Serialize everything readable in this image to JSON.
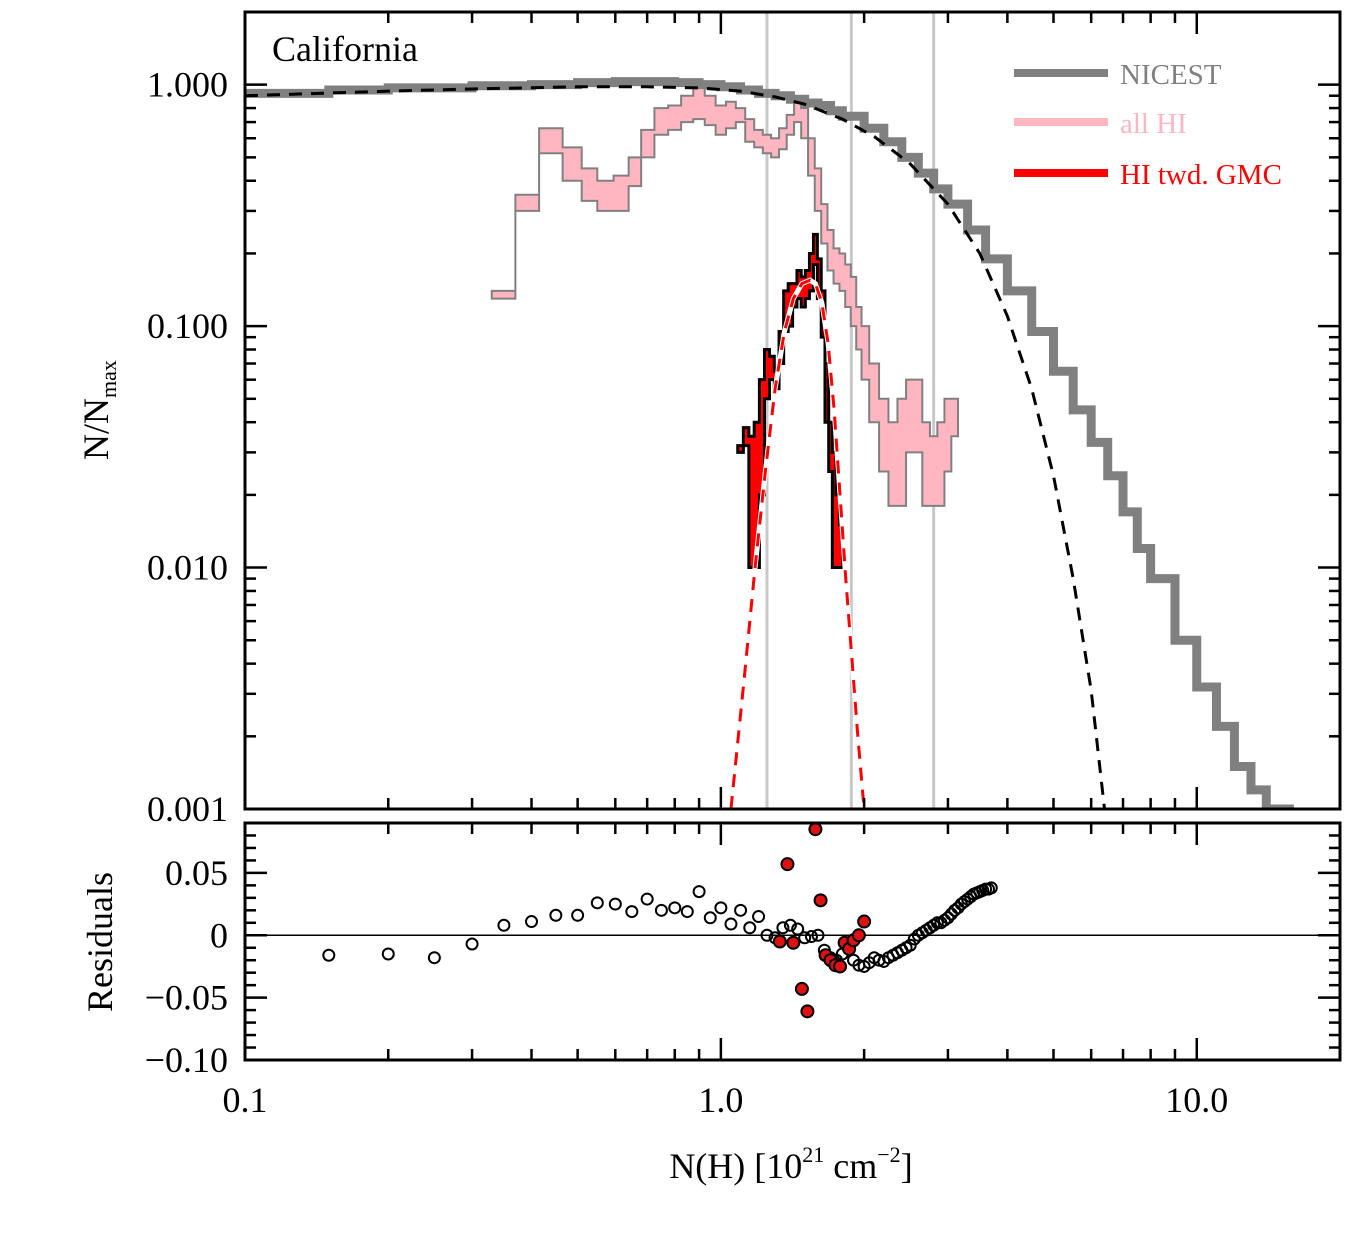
{
  "chart_data": [
    {
      "type": "line",
      "panel": "main",
      "title": "California",
      "ylabel_main": "N/N",
      "ylabel_sub": "max",
      "x_scale": "log",
      "y_scale": "log",
      "xlim": [
        0.1,
        20
      ],
      "ylim": [
        0.001,
        2.0
      ],
      "y_tick_labels": [
        {
          "value": 0.001,
          "label": "0.001"
        },
        {
          "value": 0.01,
          "label": "0.010"
        },
        {
          "value": 0.1,
          "label": "0.100"
        },
        {
          "value": 1.0,
          "label": "1.000"
        }
      ],
      "vertical_lines": [
        1.25,
        1.88,
        2.8
      ],
      "legend": [
        {
          "label": "NICEST",
          "color": "#808080"
        },
        {
          "label": "all HI",
          "color": "#ffb6c1"
        },
        {
          "label": "HI twd. GMC",
          "color": "#ff0000"
        }
      ],
      "series": {
        "nicest": {
          "color": "#808080",
          "x": [
            0.1,
            0.15,
            0.2,
            0.3,
            0.4,
            0.5,
            0.6,
            0.7,
            0.8,
            0.9,
            1.0,
            1.1,
            1.2,
            1.3,
            1.4,
            1.5,
            1.6,
            1.7,
            1.8,
            2.0,
            2.2,
            2.4,
            2.6,
            2.8,
            3.0,
            3.3,
            3.6,
            4.0,
            4.5,
            5.0,
            5.5,
            6.0,
            6.5,
            7.0,
            7.5,
            8.0,
            9.0,
            10.0,
            11.0,
            12.0,
            13.0,
            14.0,
            15.0,
            16.0
          ],
          "y": [
            0.92,
            0.95,
            0.97,
            0.99,
            1.0,
            1.02,
            1.03,
            1.03,
            1.02,
            1.0,
            0.98,
            0.95,
            0.92,
            0.9,
            0.87,
            0.84,
            0.82,
            0.78,
            0.74,
            0.66,
            0.58,
            0.5,
            0.43,
            0.37,
            0.32,
            0.25,
            0.19,
            0.14,
            0.095,
            0.065,
            0.045,
            0.033,
            0.024,
            0.017,
            0.012,
            0.009,
            0.005,
            0.0032,
            0.0022,
            0.0015,
            0.0012,
            0.001,
            0.001,
            0.001
          ]
        },
        "nicest_fit": {
          "color": "#000000",
          "x": [
            0.1,
            0.2,
            0.3,
            0.5,
            0.7,
            0.9,
            1.1,
            1.3,
            1.5,
            1.8,
            2.1,
            2.5,
            3.0,
            3.5,
            4.0,
            4.5,
            5.0,
            5.5,
            6.0,
            6.4
          ],
          "y": [
            0.9,
            0.94,
            0.96,
            0.98,
            0.98,
            0.97,
            0.94,
            0.89,
            0.83,
            0.72,
            0.61,
            0.47,
            0.32,
            0.2,
            0.11,
            0.055,
            0.024,
            0.009,
            0.0031,
            0.001
          ]
        },
        "all_hi": {
          "color": "#ffb6c1",
          "edge_color": "#808080",
          "x": [
            0.35,
            0.39,
            0.44,
            0.49,
            0.53,
            0.57,
            0.62,
            0.66,
            0.7,
            0.75,
            0.8,
            0.85,
            0.9,
            0.95,
            1.0,
            1.05,
            1.1,
            1.15,
            1.2,
            1.25,
            1.3,
            1.35,
            1.4,
            1.45,
            1.5,
            1.55,
            1.6,
            1.65,
            1.7,
            1.75,
            1.8,
            1.85,
            1.9,
            1.95,
            2.0,
            2.1,
            2.2,
            2.3,
            2.4,
            2.5,
            2.6,
            2.7,
            2.8,
            2.9,
            3.0,
            3.1
          ],
          "y_low": [
            0.13,
            0.3,
            0.52,
            0.4,
            0.33,
            0.3,
            0.3,
            0.38,
            0.5,
            0.62,
            0.65,
            0.7,
            0.72,
            0.68,
            0.62,
            0.66,
            0.7,
            0.58,
            0.55,
            0.52,
            0.5,
            0.54,
            0.62,
            0.7,
            0.6,
            0.42,
            0.3,
            0.22,
            0.17,
            0.15,
            0.14,
            0.12,
            0.1,
            0.08,
            0.06,
            0.04,
            0.025,
            0.018,
            0.018,
            0.03,
            0.03,
            0.018,
            0.018,
            0.018,
            0.025,
            0.035
          ],
          "y_high": [
            0.14,
            0.35,
            0.66,
            0.55,
            0.45,
            0.4,
            0.42,
            0.5,
            0.65,
            0.8,
            0.82,
            0.9,
            1.0,
            0.9,
            0.82,
            0.85,
            0.8,
            0.72,
            0.65,
            0.62,
            0.6,
            0.66,
            0.75,
            0.85,
            0.8,
            0.6,
            0.45,
            0.32,
            0.25,
            0.21,
            0.2,
            0.18,
            0.16,
            0.12,
            0.1,
            0.07,
            0.05,
            0.04,
            0.05,
            0.06,
            0.06,
            0.04,
            0.035,
            0.04,
            0.05,
            0.05
          ]
        },
        "hi_gmc": {
          "color": "#ff0000",
          "edge_color": "#000000",
          "x": [
            1.1,
            1.13,
            1.16,
            1.19,
            1.22,
            1.25,
            1.28,
            1.31,
            1.34,
            1.37,
            1.4,
            1.43,
            1.46,
            1.49,
            1.52,
            1.55,
            1.58,
            1.61,
            1.64,
            1.67,
            1.7,
            1.73,
            1.76,
            1.79,
            1.82
          ],
          "y_low": [
            0.03,
            0.032,
            0.01,
            0.01,
            0.02,
            0.05,
            0.06,
            0.055,
            0.07,
            0.095,
            0.1,
            0.12,
            0.13,
            0.12,
            0.13,
            0.14,
            0.18,
            0.13,
            0.09,
            0.04,
            0.025,
            0.01,
            0.01,
            0.01,
            0.01
          ],
          "y_high": [
            0.032,
            0.038,
            0.035,
            0.04,
            0.06,
            0.08,
            0.075,
            0.065,
            0.095,
            0.14,
            0.15,
            0.15,
            0.17,
            0.16,
            0.17,
            0.2,
            0.24,
            0.19,
            0.14,
            0.07,
            0.04,
            0.03,
            0.02,
            0.015,
            0.01
          ]
        },
        "hi_gmc_fit": {
          "color": "#ff0000",
          "x": [
            1.05,
            1.12,
            1.18,
            1.24,
            1.3,
            1.36,
            1.42,
            1.48,
            1.54,
            1.58,
            1.63,
            1.68,
            1.73,
            1.78,
            1.83,
            1.88,
            1.94,
            2.0
          ],
          "y": [
            0.001,
            0.0035,
            0.01,
            0.025,
            0.055,
            0.095,
            0.13,
            0.15,
            0.155,
            0.15,
            0.125,
            0.085,
            0.045,
            0.02,
            0.009,
            0.0045,
            0.002,
            0.001
          ]
        }
      }
    },
    {
      "type": "scatter",
      "panel": "residuals",
      "ylabel": "Residuals",
      "xlabel_main": "N(H) [10",
      "xlabel_exp1": "21",
      "xlabel_mid": " cm",
      "xlabel_exp2": "−2",
      "xlabel_end": "]",
      "x_scale": "log",
      "xlim": [
        0.1,
        20
      ],
      "ylim": [
        -0.1,
        0.09
      ],
      "y_tick_labels": [
        {
          "value": -0.1,
          "label": "−0.10"
        },
        {
          "value": -0.05,
          "label": "−0.05"
        },
        {
          "value": 0,
          "label": "0"
        },
        {
          "value": 0.05,
          "label": "0.05"
        }
      ],
      "x_tick_labels": [
        {
          "value": 0.1,
          "label": "0.1"
        },
        {
          "value": 1.0,
          "label": "1.0"
        },
        {
          "value": 10.0,
          "label": "10.0"
        }
      ],
      "open_points": {
        "x": [
          0.15,
          0.2,
          0.25,
          0.3,
          0.35,
          0.4,
          0.45,
          0.5,
          0.55,
          0.6,
          0.65,
          0.7,
          0.75,
          0.8,
          0.85,
          0.9,
          0.95,
          1.0,
          1.05,
          1.1,
          1.15,
          1.2,
          1.25,
          1.3,
          1.35,
          1.4,
          1.45,
          1.5,
          1.55,
          1.6,
          1.65,
          1.7,
          1.75,
          1.8,
          1.85,
          1.9,
          1.95,
          2.0,
          2.05,
          2.1,
          2.15,
          2.2,
          2.25,
          2.3,
          2.35,
          2.4,
          2.45,
          2.5,
          2.55,
          2.6,
          2.65,
          2.7,
          2.75,
          2.8,
          2.85,
          2.9,
          2.95,
          3.0,
          3.05,
          3.1,
          3.15,
          3.2,
          3.25,
          3.3,
          3.35,
          3.4,
          3.45,
          3.5,
          3.55,
          3.6,
          3.65,
          3.7
        ],
        "y": [
          -0.016,
          -0.015,
          -0.018,
          -0.007,
          0.008,
          0.011,
          0.016,
          0.016,
          0.026,
          0.025,
          0.019,
          0.029,
          0.02,
          0.022,
          0.019,
          0.035,
          0.014,
          0.022,
          0.009,
          0.02,
          0.006,
          0.015,
          0.0,
          -0.002,
          0.006,
          0.008,
          0.005,
          -0.002,
          -0.001,
          0.0,
          -0.012,
          -0.018,
          -0.02,
          -0.015,
          -0.01,
          -0.02,
          -0.024,
          -0.025,
          -0.022,
          -0.018,
          -0.02,
          -0.021,
          -0.018,
          -0.016,
          -0.014,
          -0.012,
          -0.01,
          -0.008,
          -0.003,
          0.0,
          0.002,
          0.004,
          0.006,
          0.008,
          0.01,
          0.01,
          0.012,
          0.014,
          0.017,
          0.02,
          0.022,
          0.025,
          0.027,
          0.029,
          0.031,
          0.033,
          0.034,
          0.035,
          0.036,
          0.037,
          0.037,
          0.038
        ],
        "color": "#000000"
      },
      "filled_points": {
        "x": [
          1.33,
          1.38,
          1.42,
          1.48,
          1.52,
          1.58,
          1.62,
          1.66,
          1.7,
          1.74,
          1.78,
          1.82,
          1.86,
          1.9,
          1.95,
          2.0
        ],
        "y": [
          -0.005,
          0.057,
          -0.006,
          -0.043,
          -0.061,
          0.085,
          0.028,
          -0.016,
          -0.02,
          -0.024,
          -0.025,
          -0.006,
          -0.011,
          -0.004,
          0.0,
          0.011
        ],
        "color": "#dd1111"
      }
    }
  ]
}
